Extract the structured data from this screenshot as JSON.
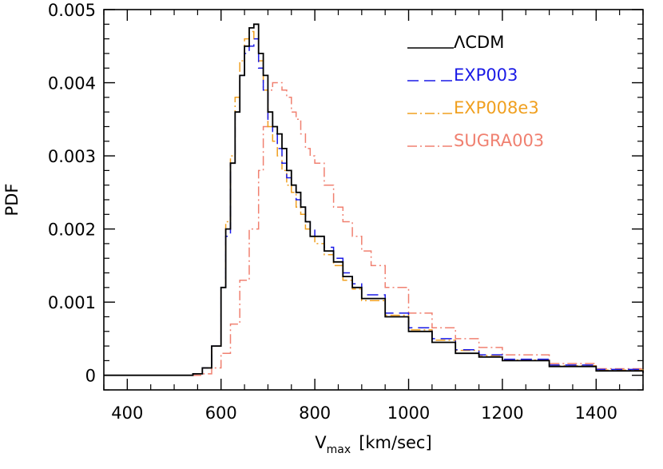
{
  "chart_data": {
    "type": "line",
    "title": "",
    "xlabel_main": "V",
    "xlabel_sub": "max",
    "xlabel_unit": "[km/sec]",
    "ylabel": "PDF",
    "xlim": [
      350,
      1500
    ],
    "ylim": [
      -0.0002,
      0.005
    ],
    "grid": false,
    "legend_position": "top-right",
    "x_ticks": [
      400,
      600,
      800,
      1000,
      1200,
      1400
    ],
    "x_tick_labels": [
      "400",
      "600",
      "800",
      "1000",
      "1200",
      "1400"
    ],
    "y_ticks": [
      0,
      0.001,
      0.002,
      0.003,
      0.004,
      0.005
    ],
    "y_tick_labels": [
      "0",
      "0.001",
      "0.002",
      "0.003",
      "0.004",
      "0.005"
    ],
    "series": [
      {
        "name": "ΛCDM",
        "color": "#000000",
        "dash": "",
        "x": [
          350,
          500,
          540,
          560,
          580,
          600,
          610,
          620,
          630,
          640,
          650,
          660,
          670,
          680,
          690,
          700,
          710,
          720,
          730,
          740,
          750,
          760,
          770,
          780,
          790,
          800,
          820,
          840,
          860,
          880,
          900,
          950,
          1000,
          1050,
          1100,
          1150,
          1200,
          1300,
          1400,
          1500
        ],
        "y": [
          0,
          0,
          2e-05,
          0.0001,
          0.0004,
          0.0012,
          0.002,
          0.0029,
          0.0036,
          0.0041,
          0.0045,
          0.00475,
          0.0048,
          0.0044,
          0.0041,
          0.0036,
          0.0034,
          0.0033,
          0.0031,
          0.0028,
          0.0026,
          0.0025,
          0.0023,
          0.0021,
          0.0019,
          0.0019,
          0.0017,
          0.00155,
          0.00135,
          0.0012,
          0.00105,
          0.0008,
          0.0006,
          0.00045,
          0.0003,
          0.00025,
          0.0002,
          0.00012,
          6e-05,
          3e-05
        ]
      },
      {
        "name": "EXP003",
        "color": "#1a1ae6",
        "dash": "14,7",
        "x": [
          350,
          500,
          540,
          560,
          580,
          600,
          610,
          620,
          630,
          640,
          650,
          660,
          670,
          680,
          690,
          700,
          710,
          720,
          730,
          740,
          750,
          760,
          770,
          780,
          790,
          800,
          820,
          840,
          860,
          880,
          900,
          950,
          1000,
          1050,
          1100,
          1150,
          1200,
          1300,
          1400,
          1500
        ],
        "y": [
          0,
          0,
          2e-05,
          0.0001,
          0.0004,
          0.0012,
          0.0019,
          0.0029,
          0.0036,
          0.0041,
          0.0044,
          0.0045,
          0.0046,
          0.0042,
          0.0039,
          0.0035,
          0.0033,
          0.0031,
          0.0029,
          0.0027,
          0.0026,
          0.0024,
          0.0023,
          0.0021,
          0.002,
          0.0019,
          0.00175,
          0.0016,
          0.0014,
          0.00125,
          0.0011,
          0.00085,
          0.00065,
          0.0005,
          0.00035,
          0.00028,
          0.00022,
          0.00014,
          8e-05,
          4e-05
        ]
      },
      {
        "name": "EXP008e3",
        "color": "#f0a020",
        "dash": "12,4,2,4",
        "x": [
          350,
          500,
          540,
          560,
          580,
          600,
          610,
          620,
          630,
          640,
          650,
          660,
          670,
          680,
          690,
          700,
          710,
          720,
          730,
          740,
          750,
          760,
          770,
          780,
          790,
          800,
          820,
          840,
          860,
          880,
          900,
          950,
          1000,
          1050,
          1100,
          1150,
          1200,
          1300,
          1400,
          1500
        ],
        "y": [
          0,
          0,
          2e-05,
          0.0001,
          0.0004,
          0.0012,
          0.0021,
          0.003,
          0.0038,
          0.0043,
          0.0046,
          0.0047,
          0.0046,
          0.0043,
          0.0039,
          0.0034,
          0.0032,
          0.003,
          0.0028,
          0.0026,
          0.0025,
          0.0023,
          0.0022,
          0.002,
          0.0019,
          0.0018,
          0.00165,
          0.0015,
          0.0013,
          0.00118,
          0.00102,
          0.00082,
          0.00062,
          0.00048,
          0.00034,
          0.00027,
          0.00021,
          0.00013,
          7e-05,
          4e-05
        ]
      },
      {
        "name": "SUGRA003",
        "color": "#f08070",
        "dash": "12,4,2,4",
        "x": [
          350,
          500,
          560,
          580,
          600,
          620,
          640,
          660,
          680,
          690,
          700,
          710,
          720,
          730,
          740,
          750,
          760,
          770,
          780,
          790,
          800,
          820,
          840,
          860,
          880,
          900,
          920,
          950,
          1000,
          1050,
          1100,
          1150,
          1200,
          1300,
          1400,
          1500
        ],
        "y": [
          0,
          0,
          2e-05,
          0.0001,
          0.0003,
          0.0007,
          0.0013,
          0.002,
          0.0028,
          0.0034,
          0.0039,
          0.004,
          0.004,
          0.0039,
          0.0038,
          0.0036,
          0.0035,
          0.0033,
          0.0031,
          0.003,
          0.0029,
          0.0026,
          0.0023,
          0.0021,
          0.0019,
          0.0017,
          0.0015,
          0.0012,
          0.00085,
          0.00065,
          0.0005,
          0.00038,
          0.00028,
          0.00016,
          9e-05,
          5e-05
        ]
      }
    ]
  }
}
